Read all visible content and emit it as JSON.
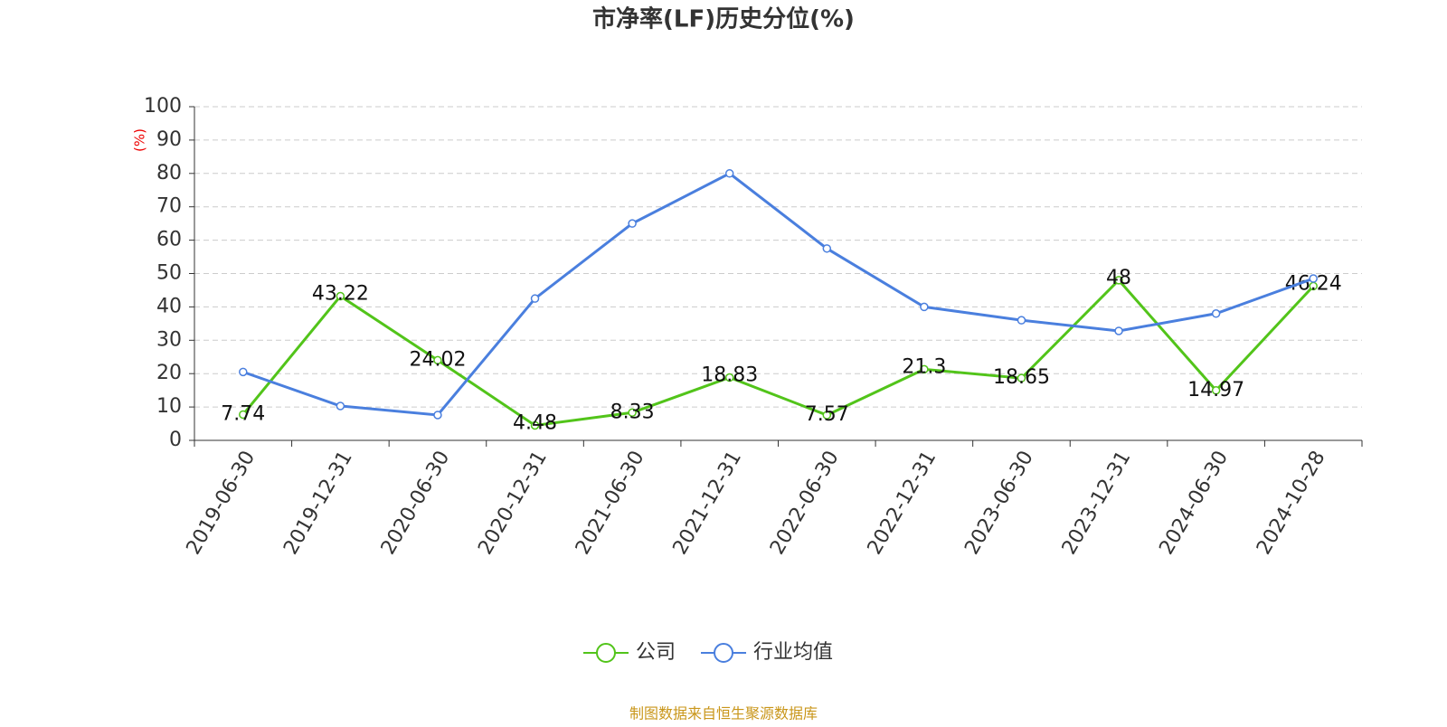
{
  "chart_data": {
    "type": "line",
    "title": "市净率(LF)历史分位(%)",
    "y_label": "(%)",
    "categories": [
      "2019-06-30",
      "2019-12-31",
      "2020-06-30",
      "2020-12-31",
      "2021-06-30",
      "2021-12-31",
      "2022-06-30",
      "2022-12-31",
      "2023-06-30",
      "2023-12-31",
      "2024-06-30",
      "2024-10-28"
    ],
    "series": [
      {
        "name": "公司",
        "color": "#52c41a",
        "values": [
          7.74,
          43.22,
          24.02,
          4.48,
          8.33,
          18.83,
          7.57,
          21.3,
          18.65,
          48,
          14.97,
          46.24
        ],
        "data_labels": true
      },
      {
        "name": "行业均值",
        "color": "#4a7fde",
        "values": [
          20.5,
          10.3,
          7.6,
          42.5,
          65,
          80,
          57.5,
          40,
          36,
          32.8,
          38,
          48.5
        ],
        "data_labels": false
      }
    ],
    "ylim": [
      0,
      100
    ],
    "yticks": [
      0,
      10,
      20,
      30,
      40,
      50,
      60,
      70,
      80,
      90,
      100
    ],
    "grid": true,
    "legend": "bottom",
    "source": "制图数据来自恒生聚源数据库"
  }
}
